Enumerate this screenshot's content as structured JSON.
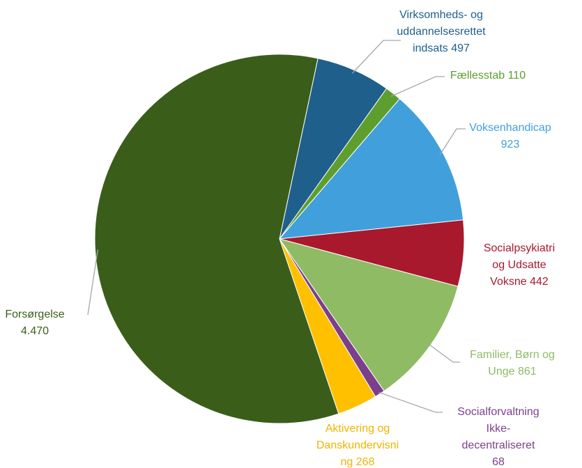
{
  "chart_data": {
    "type": "pie",
    "categories": [
      "Virksomheds- og uddannelsesrettet indsats",
      "Fællesstab",
      "Voksenhandicap",
      "Socialpsykiatri og Udsatte Voksne",
      "Familier, Børn og Unge",
      "Socialforvaltning Ikke-decentraliseret",
      "Aktivering og Danskundervisning",
      "Forsørgelse"
    ],
    "values": [
      497,
      110,
      923,
      442,
      861,
      68,
      268,
      4470
    ],
    "value_labels": [
      "497",
      "110",
      "923",
      "442",
      "861",
      "68",
      "268",
      "4.470"
    ],
    "colors": [
      "#1f5f8b",
      "#5e9e2e",
      "#41a0dc",
      "#a8192e",
      "#8fbb64",
      "#7b3f8c",
      "#ffc000",
      "#3a5e1a"
    ]
  }
}
